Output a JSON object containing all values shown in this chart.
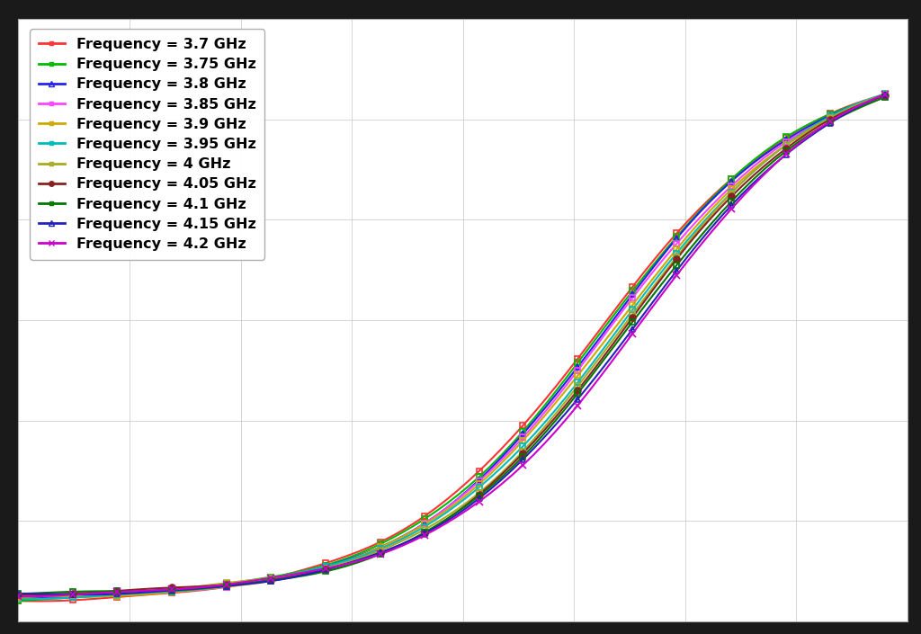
{
  "background_color": "#1a1a1a",
  "plot_bg_color": "#ffffff",
  "grid_color": "#cccccc",
  "grid_alpha": 0.8,
  "freq_labels": [
    "3.7 GHz",
    "3.75 GHz",
    "3.8 GHz",
    "3.85 GHz",
    "3.9 GHz",
    "3.95 GHz",
    "4 GHz",
    "4.05 GHz",
    "4.1 GHz",
    "4.15 GHz",
    "4.2 GHz"
  ],
  "colors": [
    "#ff3333",
    "#00bb00",
    "#2222ee",
    "#ff44ff",
    "#ccaa00",
    "#00bbbb",
    "#aaaa22",
    "#882222",
    "#007700",
    "#2222bb",
    "#cc00cc"
  ],
  "markers": [
    "s",
    "s",
    "^",
    "s",
    "s",
    "s",
    "s",
    "o",
    "s",
    "^",
    "x"
  ],
  "marker_sizes": [
    4,
    4,
    5,
    4,
    4,
    4,
    4,
    5,
    4,
    5,
    6
  ],
  "linewidth": 1.5,
  "legend_fontsize": 11.5,
  "border_thickness": 25
}
